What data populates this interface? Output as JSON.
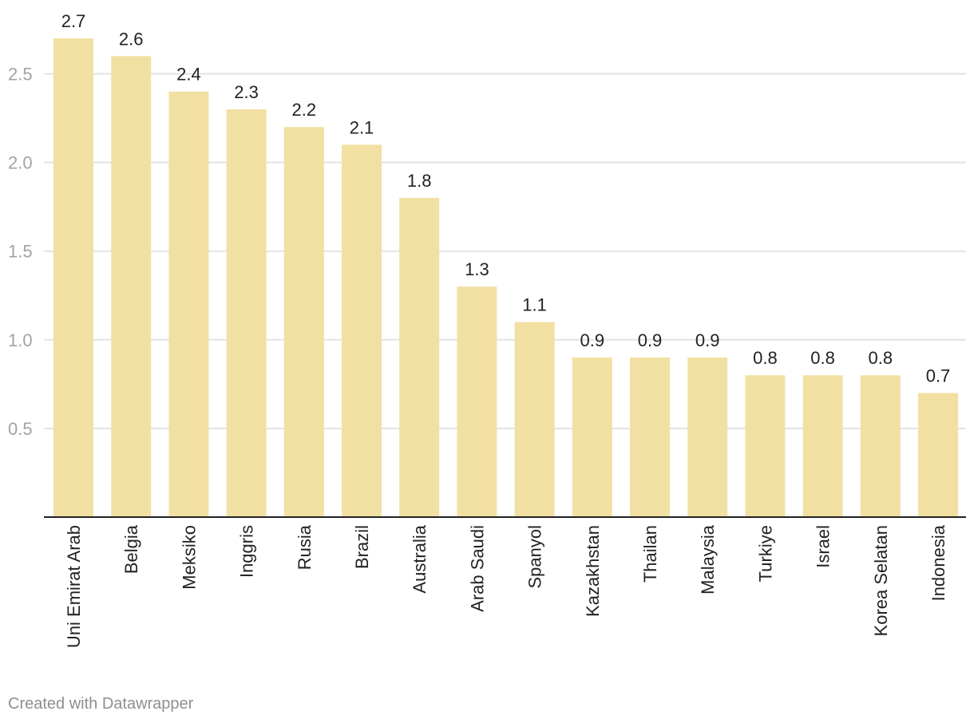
{
  "chart_data": {
    "type": "bar",
    "categories": [
      "Uni Emirat Arab",
      "Belgia",
      "Meksiko",
      "Inggris",
      "Rusia",
      "Brazil",
      "Australia",
      "Arab Saudi",
      "Spanyol",
      "Kazakhstan",
      "Thailan",
      "Malaysia",
      "Turkiye",
      "Israel",
      "Korea Selatan",
      "Indonesia"
    ],
    "values": [
      2.7,
      2.6,
      2.4,
      2.3,
      2.2,
      2.1,
      1.8,
      1.3,
      1.1,
      0.9,
      0.9,
      0.9,
      0.8,
      0.8,
      0.8,
      0.7
    ],
    "value_labels": [
      "2.7",
      "2.6",
      "2.4",
      "2.3",
      "2.2",
      "2.1",
      "1.8",
      "1.3",
      "1.1",
      "0.9",
      "0.9",
      "0.9",
      "0.8",
      "0.8",
      "0.8",
      "0.7"
    ],
    "yticks": [
      0.5,
      1.0,
      1.5,
      2.0,
      2.5
    ],
    "ytick_labels": [
      "0.5",
      "1.0",
      "1.5",
      "2.0",
      "2.5"
    ],
    "ylim": [
      0,
      2.7
    ],
    "title": "",
    "xlabel": "",
    "ylabel": "",
    "grid": true,
    "bar_color": "#f2e0a3",
    "grid_color": "#e3e3e3",
    "axis_color": "#222222"
  },
  "footer": {
    "credit": "Created with Datawrapper"
  }
}
